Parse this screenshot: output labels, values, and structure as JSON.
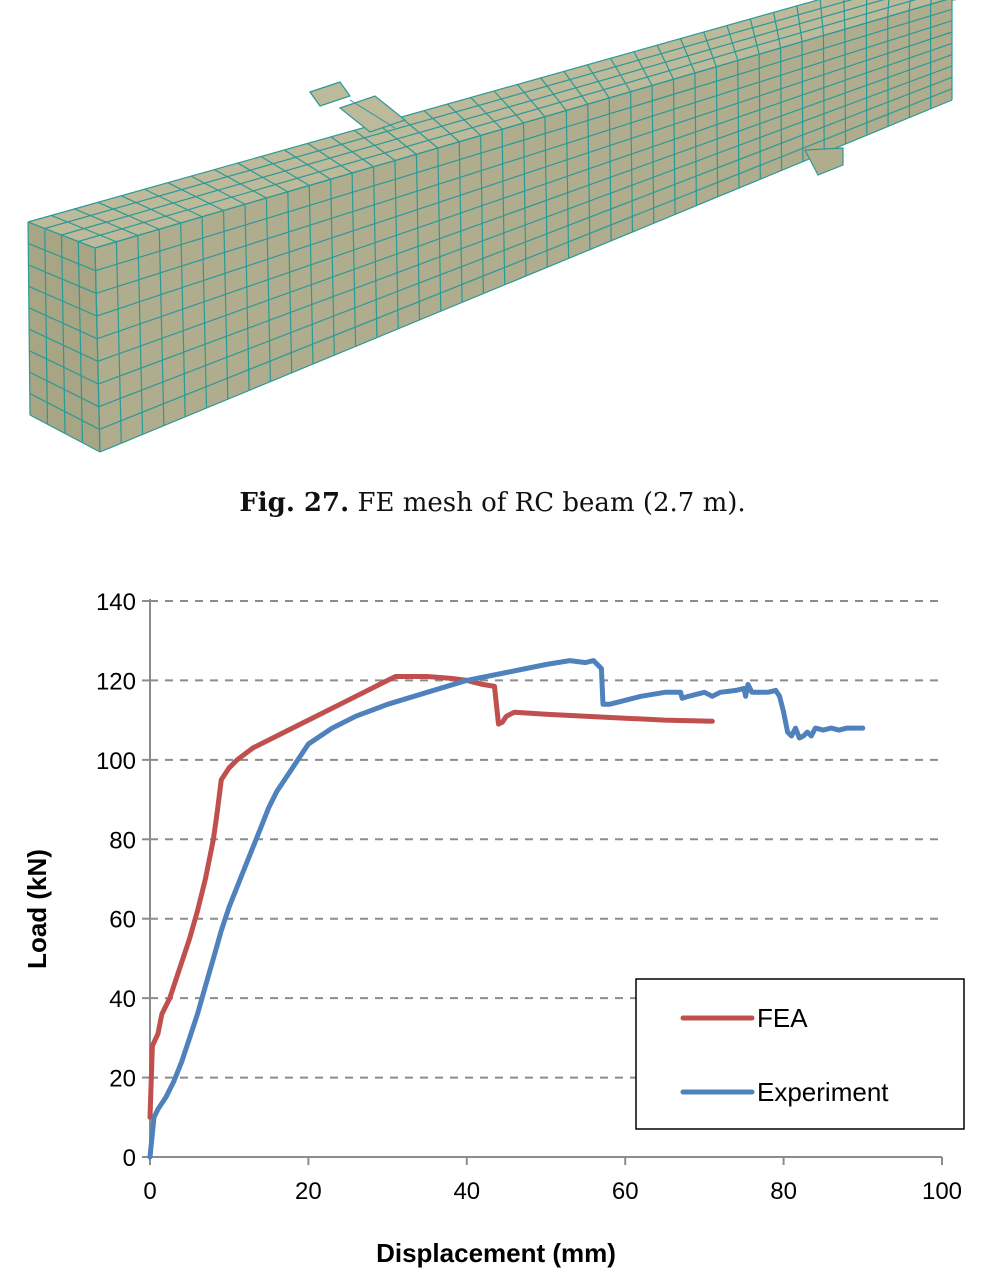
{
  "figure27": {
    "label": "Fig. 27",
    "text": "FE mesh of RC beam (2.7 m).",
    "colors": {
      "beam_fill": "#b0ad8e",
      "beam_top": "#bdb99b",
      "beam_end": "#a8a585",
      "mesh_line": "#2a9a96"
    }
  },
  "chart_data": {
    "type": "line",
    "title": "",
    "xlabel": "Displacement (mm)",
    "ylabel": "Load (kN)",
    "xlim": [
      0,
      100
    ],
    "ylim": [
      0,
      140
    ],
    "xticks": [
      0,
      20,
      40,
      60,
      80,
      100
    ],
    "yticks": [
      0,
      20,
      40,
      60,
      80,
      100,
      120,
      140
    ],
    "grid": "horizontal dashed",
    "legend": "bottom-right",
    "series": [
      {
        "name": "FEA",
        "color": "#c0504d",
        "points": [
          [
            0,
            10
          ],
          [
            0.3,
            28
          ],
          [
            1,
            31
          ],
          [
            1.5,
            36
          ],
          [
            2.5,
            40
          ],
          [
            3.5,
            46
          ],
          [
            5,
            55
          ],
          [
            6,
            62
          ],
          [
            7,
            70
          ],
          [
            8,
            80
          ],
          [
            8.5,
            87
          ],
          [
            9,
            95
          ],
          [
            10,
            98
          ],
          [
            11,
            100
          ],
          [
            13,
            103
          ],
          [
            16,
            106
          ],
          [
            20,
            110
          ],
          [
            25,
            115
          ],
          [
            30,
            120
          ],
          [
            31,
            121
          ],
          [
            35,
            121
          ],
          [
            38,
            120.5
          ],
          [
            40,
            120
          ],
          [
            42,
            119
          ],
          [
            43.5,
            118.5
          ],
          [
            44,
            109
          ],
          [
            44.5,
            109.5
          ],
          [
            45,
            111
          ],
          [
            46,
            112
          ],
          [
            50,
            111.5
          ],
          [
            55,
            111
          ],
          [
            60,
            110.5
          ],
          [
            65,
            110
          ],
          [
            71,
            109.7
          ]
        ]
      },
      {
        "name": "Experiment",
        "color": "#4f81bd",
        "points": [
          [
            0,
            0
          ],
          [
            0.5,
            10
          ],
          [
            1,
            12
          ],
          [
            2,
            15
          ],
          [
            3,
            19
          ],
          [
            4,
            24
          ],
          [
            5,
            30
          ],
          [
            6,
            36
          ],
          [
            7,
            43
          ],
          [
            8,
            50
          ],
          [
            9,
            57
          ],
          [
            10,
            63
          ],
          [
            11,
            68
          ],
          [
            12,
            73
          ],
          [
            13,
            78
          ],
          [
            14,
            83
          ],
          [
            15,
            88
          ],
          [
            16,
            92
          ],
          [
            17,
            95
          ],
          [
            18,
            98
          ],
          [
            19,
            101
          ],
          [
            20,
            104
          ],
          [
            23,
            108
          ],
          [
            26,
            111
          ],
          [
            30,
            114
          ],
          [
            35,
            117
          ],
          [
            40,
            120
          ],
          [
            45,
            122
          ],
          [
            50,
            124
          ],
          [
            53,
            125
          ],
          [
            55,
            124.5
          ],
          [
            56,
            125
          ],
          [
            57,
            123
          ],
          [
            57.2,
            114
          ],
          [
            58,
            114
          ],
          [
            60,
            115
          ],
          [
            62,
            116
          ],
          [
            65,
            117
          ],
          [
            67,
            117
          ],
          [
            67.2,
            115.5
          ],
          [
            68,
            116
          ],
          [
            70,
            117
          ],
          [
            71,
            116
          ],
          [
            72,
            117
          ],
          [
            74,
            117.5
          ],
          [
            75,
            118
          ],
          [
            75.2,
            116
          ],
          [
            75.5,
            119
          ],
          [
            76,
            117
          ],
          [
            78,
            117
          ],
          [
            79,
            117.5
          ],
          [
            79.5,
            116
          ],
          [
            80,
            112
          ],
          [
            80.5,
            107
          ],
          [
            81,
            106
          ],
          [
            81.5,
            108
          ],
          [
            82,
            105.5
          ],
          [
            82.5,
            106
          ],
          [
            83,
            107
          ],
          [
            83.5,
            106
          ],
          [
            84,
            108
          ],
          [
            85,
            107.5
          ],
          [
            86,
            108
          ],
          [
            87,
            107.5
          ],
          [
            88,
            108
          ],
          [
            90,
            108
          ]
        ]
      }
    ]
  }
}
